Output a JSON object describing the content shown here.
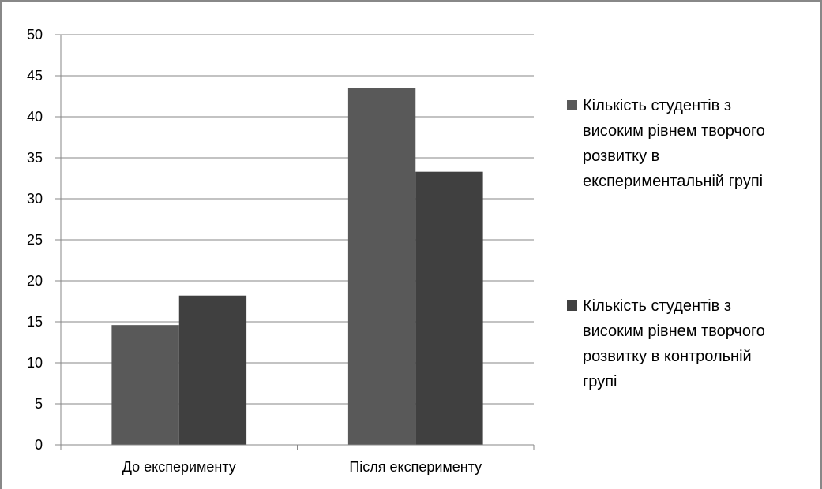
{
  "chart_data": {
    "type": "bar",
    "title": "",
    "xlabel": "",
    "ylabel": "",
    "categories": [
      "До експерименту",
      "Після експерименту"
    ],
    "series": [
      {
        "name": "Кількість студентів з високим рівнем творчого розвитку в експериментальній групі",
        "legend_lines": [
          "Кількість студентів з",
          "високим рівнем творчого",
          "розвитку в",
          "експериментальній групі"
        ],
        "values": [
          14.6,
          43.5
        ],
        "color": "#595959"
      },
      {
        "name": "Кількість студентів з високим рівнем творчого розвитку в контрольній групі",
        "legend_lines": [
          "Кількість студентів з",
          "високим рівнем творчого",
          "розвитку в контрольній",
          "групі"
        ],
        "values": [
          18.2,
          33.3
        ],
        "color": "#404040"
      }
    ],
    "ylim": [
      0,
      50
    ],
    "yticks": [
      0,
      5,
      10,
      15,
      20,
      25,
      30,
      35,
      40,
      45,
      50
    ],
    "grid": true,
    "legend_position": "right"
  }
}
